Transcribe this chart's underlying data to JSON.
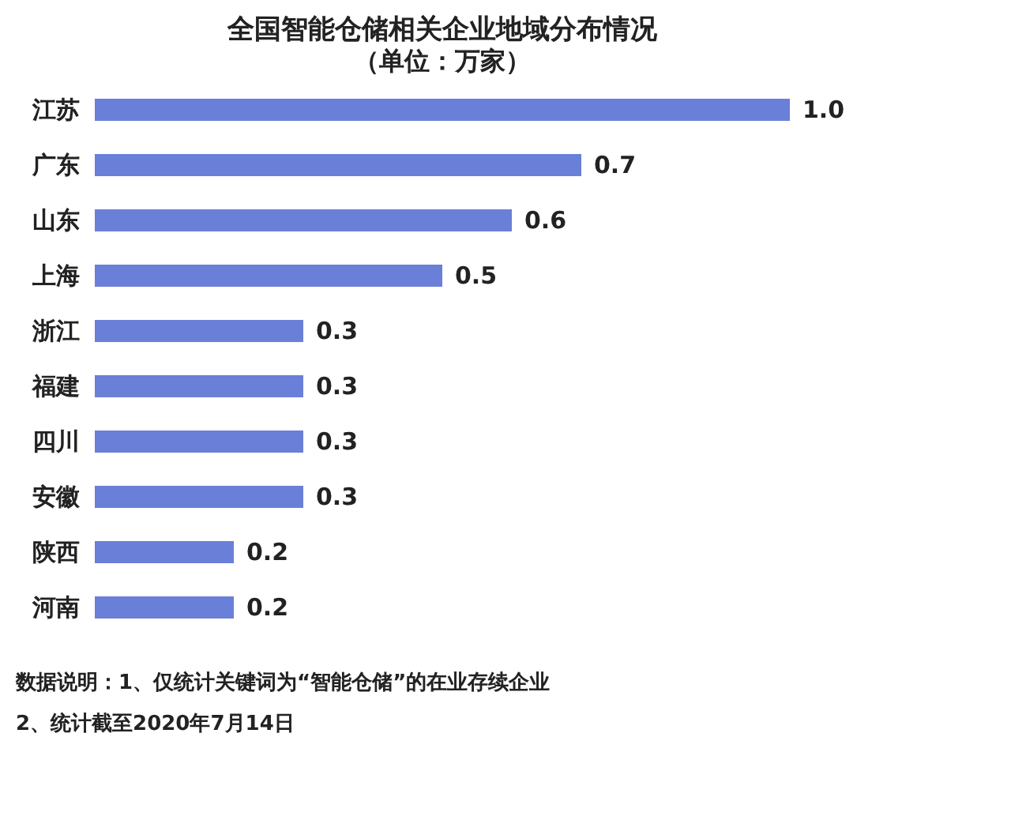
{
  "chart_data": {
    "type": "bar",
    "orientation": "horizontal",
    "title": "全国智能仓储相关企业地域分布情况",
    "subtitle": "（单位：万家）",
    "categories": [
      "江苏",
      "广东",
      "山东",
      "上海",
      "浙江",
      "福建",
      "四川",
      "安徽",
      "陕西",
      "河南"
    ],
    "values": [
      1.0,
      0.7,
      0.6,
      0.5,
      0.3,
      0.3,
      0.3,
      0.3,
      0.2,
      0.2
    ],
    "value_labels": [
      "1.0",
      "0.7",
      "0.6",
      "0.5",
      "0.3",
      "0.3",
      "0.3",
      "0.3",
      "0.2",
      "0.2"
    ],
    "color": "#6a7fd8",
    "grid": false,
    "annotations": [
      "数据说明：1、仅统计关键词为“智能仓储”的在业存续企业",
      "2、统计截至2020年7月14日"
    ]
  }
}
